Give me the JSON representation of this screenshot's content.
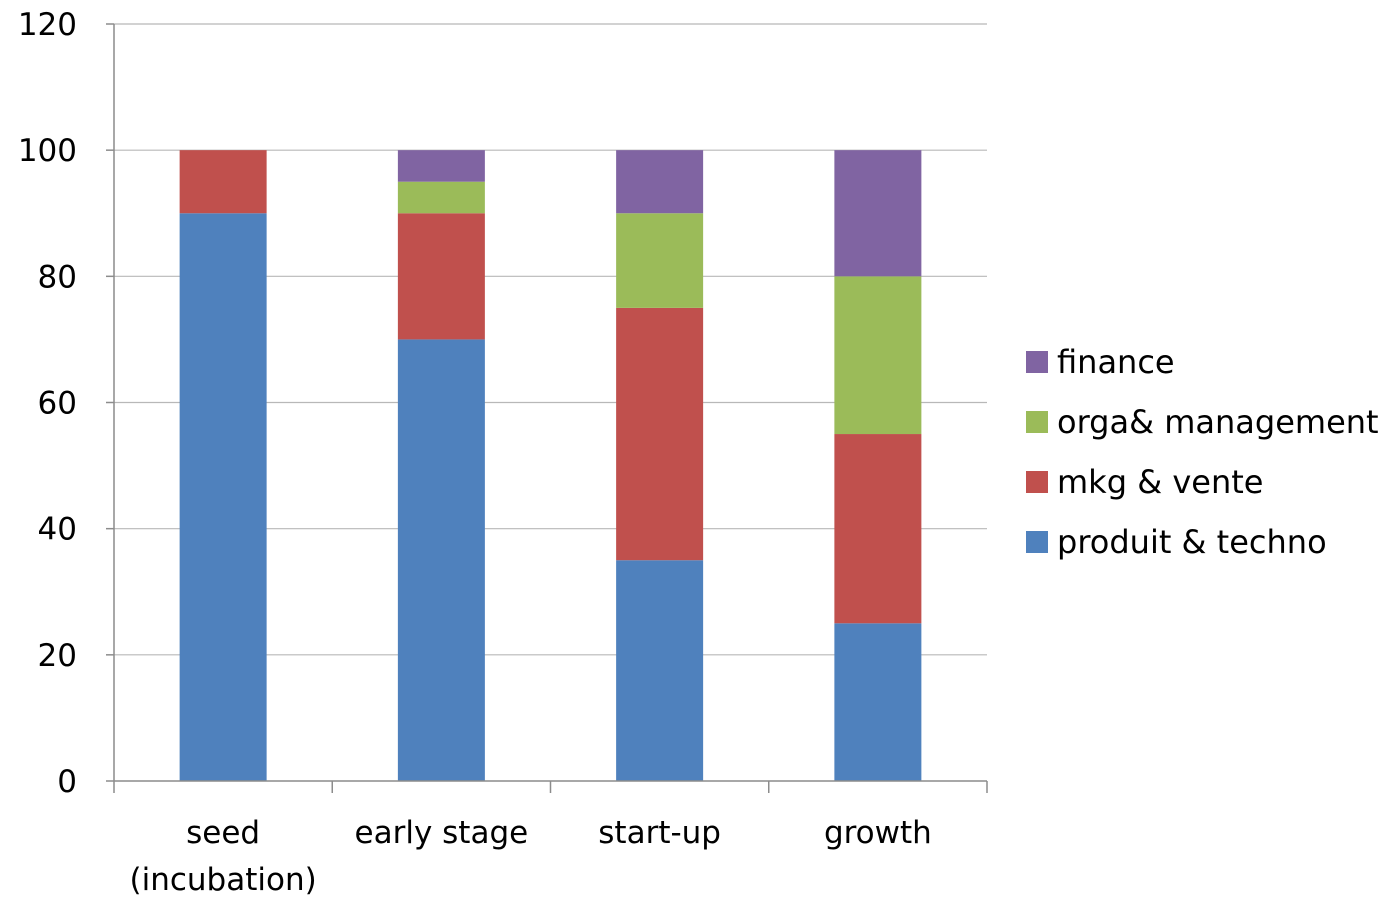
{
  "chart_data": {
    "type": "bar",
    "stacked": true,
    "title": "",
    "xlabel": "",
    "ylabel": "",
    "ylim": [
      0,
      120
    ],
    "yticks": [
      0,
      20,
      40,
      60,
      80,
      100,
      120
    ],
    "grid": true,
    "legend_position": "right",
    "categories": [
      "seed\n(incubation)",
      "early stage",
      "start-up",
      "growth"
    ],
    "series": [
      {
        "name": "produit & techno",
        "color": "#4F81BD",
        "values": [
          90,
          70,
          35,
          25
        ]
      },
      {
        "name": "mkg & vente",
        "color": "#C0504D",
        "values": [
          10,
          20,
          40,
          30
        ]
      },
      {
        "name": "orga& management",
        "color": "#9BBB59",
        "values": [
          0,
          5,
          15,
          25
        ]
      },
      {
        "name": "finance",
        "color": "#8064A2",
        "values": [
          0,
          5,
          10,
          20
        ]
      }
    ]
  }
}
